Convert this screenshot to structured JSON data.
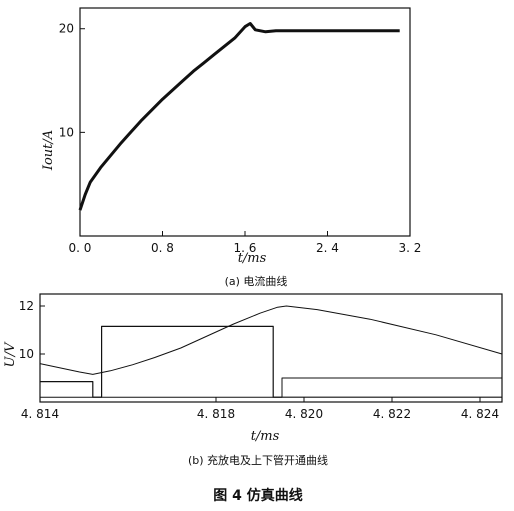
{
  "chart_data": [
    {
      "type": "line",
      "caption": "(a) 电流曲线",
      "ylabel": "Iout/A",
      "xlabel": "t/ms",
      "xlim": [
        0,
        3.2
      ],
      "ylim": [
        0,
        22
      ],
      "x_ticks": [
        "0. 0",
        "0. 8",
        "1. 6",
        "2. 4",
        "3. 2"
      ],
      "x_tick_values": [
        0,
        0.8,
        1.6,
        2.4,
        3.2
      ],
      "y_ticks": [
        "10",
        "20"
      ],
      "y_tick_values": [
        10,
        20
      ],
      "series": [
        {
          "x": [
            0.0,
            0.05,
            0.1,
            0.2,
            0.3,
            0.4,
            0.5,
            0.6,
            0.7,
            0.8,
            0.9,
            1.0,
            1.1,
            1.2,
            1.3,
            1.4,
            1.5,
            1.6,
            1.65,
            1.7,
            1.8,
            1.9,
            2.0,
            2.2,
            2.4,
            2.6,
            2.8,
            3.0,
            3.1
          ],
          "y": [
            2.5,
            4.0,
            5.2,
            6.6,
            7.8,
            9.0,
            10.1,
            11.2,
            12.2,
            13.2,
            14.1,
            15.0,
            15.9,
            16.7,
            17.5,
            18.3,
            19.1,
            20.2,
            20.5,
            19.9,
            19.7,
            19.8,
            19.8,
            19.8,
            19.8,
            19.8,
            19.8,
            19.8,
            19.8
          ]
        }
      ]
    },
    {
      "type": "line",
      "caption": "(b) 充放电及上下管开通曲线",
      "ylabel": "U/V",
      "xlabel": "t/ms",
      "xlim": [
        4.814,
        4.8245
      ],
      "ylim": [
        8.0,
        12.5
      ],
      "x_ticks": [
        "4. 814",
        "4. 818",
        "4. 820",
        "4. 822",
        "4. 824"
      ],
      "x_tick_values": [
        4.814,
        4.818,
        4.82,
        4.822,
        4.824
      ],
      "y_ticks": [
        "10",
        "12"
      ],
      "y_tick_values": [
        10,
        12
      ],
      "series": [
        {
          "x": [
            4.814,
            4.8149,
            4.8152,
            4.8156,
            4.8161,
            4.8166,
            4.8172,
            4.8178,
            4.8184,
            4.819,
            4.8194,
            4.8196,
            4.8203,
            4.8215,
            4.823,
            4.8245
          ],
          "y": [
            9.6,
            9.25,
            9.15,
            9.3,
            9.55,
            9.85,
            10.25,
            10.75,
            11.25,
            11.7,
            11.95,
            12.0,
            11.85,
            11.45,
            10.8,
            10.0
          ]
        },
        {
          "x": [
            4.814,
            4.8152,
            4.8152,
            4.8154,
            4.8154,
            4.8193,
            4.8193,
            4.8245
          ],
          "y": [
            8.85,
            8.85,
            8.2,
            8.2,
            11.15,
            11.15,
            8.2,
            8.2
          ]
        },
        {
          "x": [
            4.814,
            4.8193,
            4.8193,
            4.8195,
            4.8195,
            4.8245
          ],
          "y": [
            8.2,
            8.2,
            8.2,
            8.2,
            9.0,
            9.0
          ]
        }
      ]
    }
  ],
  "figure_title": "图 4   仿真曲线"
}
